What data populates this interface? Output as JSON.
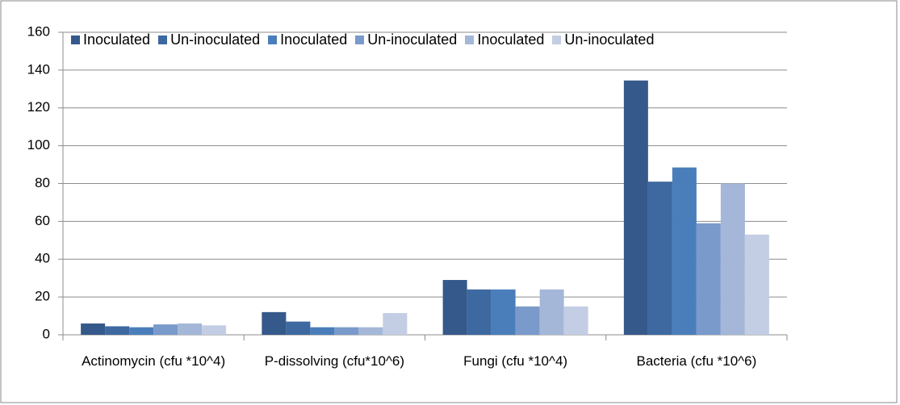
{
  "chart_data": {
    "type": "bar",
    "categories": [
      "Actinomycin (cfu *10^4)",
      "P-dissolving (cfu*10^6)",
      "Fungi (cfu *10^4)",
      "Bacteria (cfu *10^6)"
    ],
    "series": [
      {
        "name": "Inoculated",
        "color": "#35598a",
        "values": [
          6,
          12,
          29,
          134.5
        ]
      },
      {
        "name": "Un-inoculated",
        "color": "#3d68a0",
        "values": [
          4.5,
          7,
          24,
          81
        ]
      },
      {
        "name": "Inoculated",
        "color": "#4a7ebb",
        "values": [
          4,
          4,
          24,
          88.5
        ]
      },
      {
        "name": "Un-inoculated",
        "color": "#7a9acb",
        "values": [
          5.5,
          4,
          15,
          59
        ]
      },
      {
        "name": "Inoculated",
        "color": "#a4b7d8",
        "values": [
          6,
          4,
          24,
          80
        ]
      },
      {
        "name": "Un-inoculated",
        "color": "#c3cee4",
        "values": [
          5,
          11.5,
          15,
          53
        ]
      }
    ],
    "ylim": [
      0,
      160
    ],
    "yticks": [
      0,
      20,
      40,
      60,
      80,
      100,
      120,
      140,
      160
    ],
    "grid": true,
    "legend": "top"
  }
}
